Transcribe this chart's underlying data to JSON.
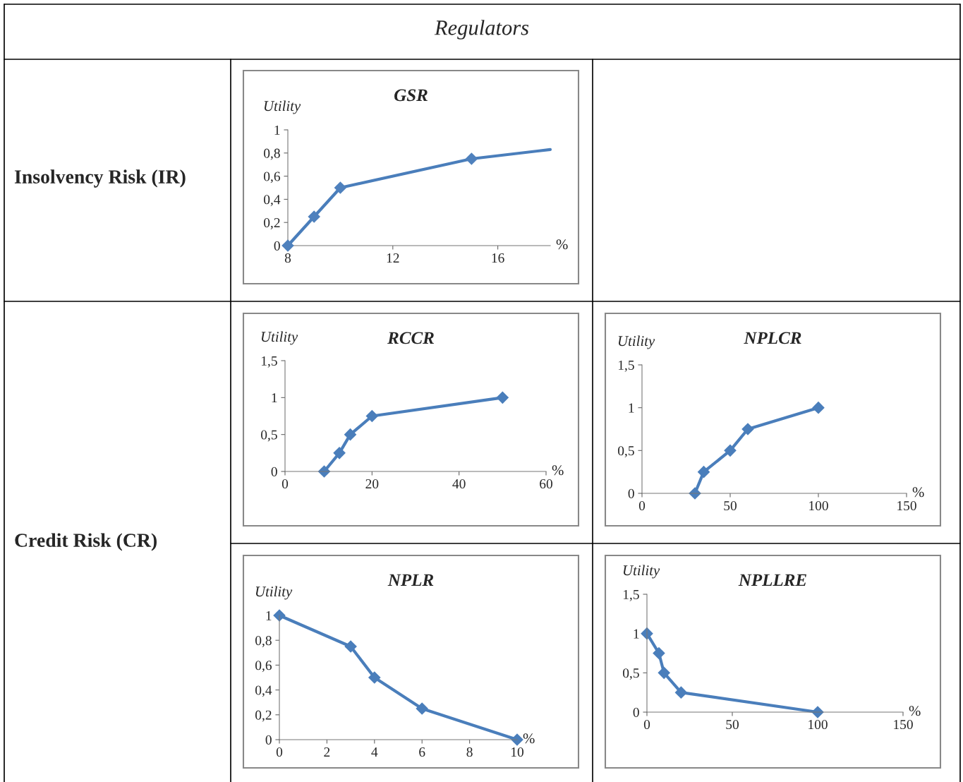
{
  "chart_data": [
    {
      "type": "line",
      "title": "GSR",
      "xlabel": "%",
      "ylabel": "Utility",
      "annotations": [
        "Regulators",
        "Insolvency Risk (IR)"
      ],
      "xlim": [
        8,
        18
      ],
      "xticks": [
        8,
        12,
        16
      ],
      "ylim": [
        0,
        1
      ],
      "yticks": [
        0,
        {
          "value": 0.2,
          "label": "0,2"
        },
        {
          "value": 0.4,
          "label": "0,4"
        },
        {
          "value": 0.6,
          "label": "0,6"
        },
        {
          "value": 0.8,
          "label": "0,8"
        },
        1
      ],
      "grid": false,
      "legend": false,
      "series": [
        {
          "type": "line",
          "marker": "none",
          "color": "#4a7ebb",
          "x": [
            8,
            9,
            10,
            15,
            18
          ],
          "values": [
            0,
            0.25,
            0.5,
            0.75,
            0.83
          ]
        },
        {
          "type": "scatter",
          "marker": "diamond",
          "color": "#4f81bd",
          "x": [
            8,
            9,
            10,
            15
          ],
          "values": [
            0,
            0.25,
            0.5,
            0.75
          ]
        }
      ]
    },
    {
      "type": "line",
      "title": "RCCR",
      "xlabel": "%",
      "ylabel": "Utility",
      "annotations": [
        "Credit Risk (CR)"
      ],
      "xlim": [
        0,
        60
      ],
      "xticks": [
        0,
        20,
        40,
        60
      ],
      "ylim": [
        0,
        1.5
      ],
      "yticks": [
        0,
        {
          "value": 0.5,
          "label": "0,5"
        },
        1,
        {
          "value": 1.5,
          "label": "1,5"
        }
      ],
      "grid": false,
      "legend": false,
      "marker": "diamond",
      "series": [
        {
          "color": "#4a7ebb",
          "x": [
            9,
            12.5,
            15,
            20,
            50
          ],
          "values": [
            0,
            0.25,
            0.5,
            0.75,
            1
          ]
        }
      ]
    },
    {
      "type": "line",
      "title": "NPLCR",
      "xlabel": "%",
      "ylabel": "Utility",
      "xlim": [
        0,
        150
      ],
      "xticks": [
        0,
        50,
        100,
        150
      ],
      "ylim": [
        0,
        1.5
      ],
      "yticks": [
        0,
        {
          "value": 0.5,
          "label": "0,5"
        },
        1,
        {
          "value": 1.5,
          "label": "1,5"
        }
      ],
      "grid": false,
      "legend": false,
      "marker": "diamond",
      "series": [
        {
          "color": "#4a7ebb",
          "x": [
            30,
            35,
            50,
            60,
            100
          ],
          "values": [
            0,
            0.25,
            0.5,
            0.75,
            1
          ]
        }
      ]
    },
    {
      "type": "line",
      "title": "NPLR",
      "xlabel": "%",
      "ylabel": "Utility",
      "xlim": [
        0,
        10
      ],
      "xticks": [
        0,
        2,
        4,
        6,
        8,
        10
      ],
      "ylim": [
        0,
        1
      ],
      "yticks": [
        0,
        {
          "value": 0.2,
          "label": "0,2"
        },
        {
          "value": 0.4,
          "label": "0,4"
        },
        {
          "value": 0.6,
          "label": "0,6"
        },
        {
          "value": 0.8,
          "label": "0,8"
        },
        1
      ],
      "grid": false,
      "legend": false,
      "marker": "diamond",
      "series": [
        {
          "color": "#4a7ebb",
          "x": [
            0,
            3,
            4,
            6,
            10
          ],
          "values": [
            1,
            0.75,
            0.5,
            0.25,
            0
          ]
        }
      ]
    },
    {
      "type": "line",
      "title": "NPLLRE",
      "xlabel": "%",
      "ylabel": "Utility",
      "xlim": [
        0,
        150
      ],
      "xticks": [
        0,
        50,
        100,
        150
      ],
      "ylim": [
        0,
        1.5
      ],
      "yticks": [
        0,
        {
          "value": 0.5,
          "label": "0,5"
        },
        1,
        {
          "value": 1.5,
          "label": "1,5"
        }
      ],
      "grid": false,
      "legend": false,
      "marker": "diamond",
      "series": [
        {
          "color": "#4a7ebb",
          "x": [
            0,
            7,
            10,
            20,
            100
          ],
          "values": [
            1,
            0.75,
            0.5,
            0.25,
            0
          ]
        }
      ]
    }
  ]
}
